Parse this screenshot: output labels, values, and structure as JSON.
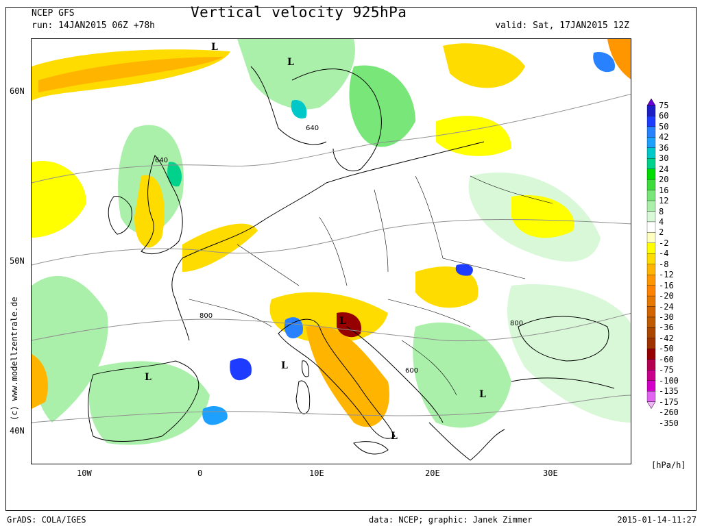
{
  "header": {
    "model": "NCEP GFS",
    "run": "run: 14JAN2015 06Z +78h",
    "title": "Vertical velocity 925hPa",
    "valid": "valid: Sat, 17JAN2015 12Z"
  },
  "map": {
    "lat_labels": [
      "60N",
      "50N",
      "40N"
    ],
    "lon_labels": [
      "10W",
      "0",
      "10E",
      "20E",
      "30E"
    ],
    "contour_labels": [
      "640",
      "640",
      "800",
      "800",
      "600"
    ],
    "pressure_centers": [
      "L",
      "L",
      "L",
      "L",
      "L",
      "L",
      "L"
    ],
    "credit": "(c) www.modellzentrale.de"
  },
  "legend": {
    "unit": "[hPa/h]",
    "labels": [
      "75",
      "60",
      "50",
      "42",
      "36",
      "30",
      "24",
      "20",
      "16",
      "12",
      "8",
      "4",
      "2",
      "-2",
      "-4",
      "-8",
      "-12",
      "-16",
      "-20",
      "-24",
      "-30",
      "-36",
      "-42",
      "-50",
      "-60",
      "-75",
      "-100",
      "-135",
      "-175",
      "-260",
      "-350"
    ],
    "colors": [
      "#6a00d8",
      "#1e1ec8",
      "#1e3cff",
      "#2882ff",
      "#1ea0ff",
      "#00c8c8",
      "#00d28c",
      "#00dc00",
      "#3cdc3c",
      "#78e678",
      "#aaf0aa",
      "#d8f8d8",
      "#ffffff",
      "#ffffc0",
      "#ffff00",
      "#ffdc00",
      "#ffb400",
      "#ff9600",
      "#ff8200",
      "#e67800",
      "#d26400",
      "#be5a00",
      "#aa4600",
      "#a03200",
      "#960000",
      "#b40050",
      "#c8008c",
      "#d200c8",
      "#e164f0",
      "#f0b4f8"
    ]
  },
  "footer": {
    "left": "GrADS: COLA/IGES",
    "middle": "data: NCEP; graphic: Janek Zimmer",
    "right": "2015-01-14-11:27"
  }
}
